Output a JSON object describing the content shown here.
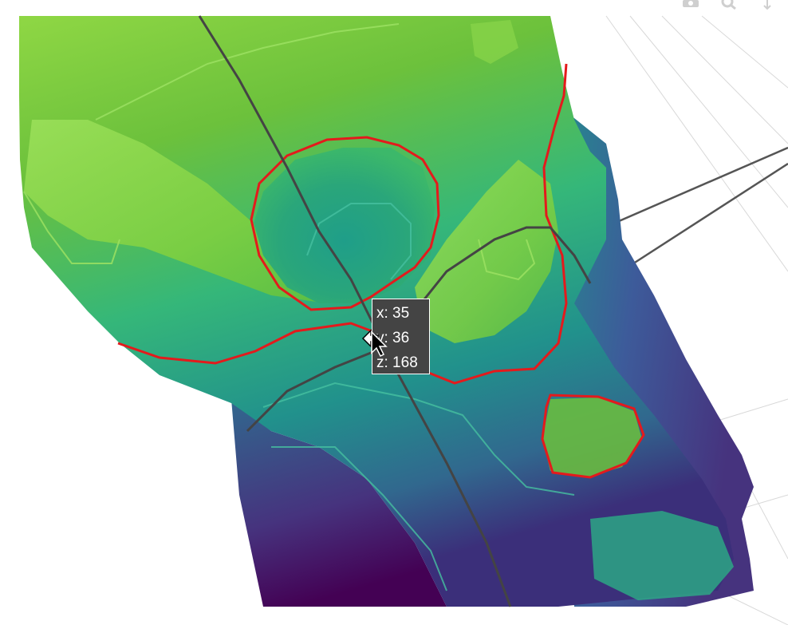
{
  "chart_data": {
    "type": "surface",
    "title": "",
    "colorscale": "viridis",
    "colors": {
      "low": "#440154",
      "mid_low": "#31688e",
      "mid": "#21918c",
      "mid_high": "#35b779",
      "high": "#8fd744",
      "contour": "#e41a1c",
      "path_line": "#444444"
    },
    "hover": {
      "x_text": "x: 35",
      "y_text": "y: 36",
      "z_text": "z: 168"
    }
  },
  "toolbar": {
    "icons": [
      "camera-icon",
      "zoom-icon",
      "pan-icon"
    ]
  }
}
